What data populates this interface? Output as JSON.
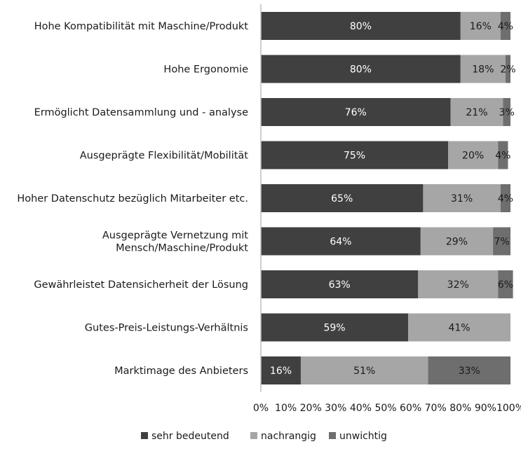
{
  "chart_data": {
    "type": "bar",
    "orientation": "horizontal",
    "stacked": true,
    "title": "",
    "xlabel": "",
    "ylabel": "",
    "xlim": [
      0,
      100
    ],
    "x_ticks": [
      "0%",
      "10%",
      "20%",
      "30%",
      "40%",
      "50%",
      "60%",
      "70%",
      "80%",
      "90%",
      "100%"
    ],
    "grid": false,
    "legend_position": "bottom",
    "categories": [
      [
        "Hohe Kompatibilität mit Maschine/Produkt"
      ],
      [
        "Hohe Ergonomie"
      ],
      [
        "Ermöglicht Datensammlung und - analyse"
      ],
      [
        "Ausgeprägte Flexibilität/Mobilität"
      ],
      [
        "Hoher Datenschutz bezüglich Mitarbeiter etc."
      ],
      [
        "Ausgeprägte Vernetzung mit",
        "Mensch/Maschine/Produkt"
      ],
      [
        "Gewährleistet Datensicherheit der Lösung"
      ],
      [
        "Gutes-Preis-Leistungs-Verhältnis"
      ],
      [
        "Marktimage des Anbieters"
      ]
    ],
    "series": [
      {
        "name": "sehr bedeutend",
        "color": "#404040",
        "label_color": "#ffffff",
        "values": [
          80,
          80,
          76,
          75,
          65,
          64,
          63,
          59,
          16
        ],
        "labels": [
          "80%",
          "80%",
          "76%",
          "75%",
          "65%",
          "64%",
          "63%",
          "59%",
          "16%"
        ]
      },
      {
        "name": "nachrangig",
        "color": "#a6a6a6",
        "label_color": "#1a1a1a",
        "values": [
          16,
          18,
          21,
          20,
          31,
          29,
          32,
          41,
          51
        ],
        "labels": [
          "16%",
          "18%",
          "21%",
          "20%",
          "31%",
          "29%",
          "32%",
          "41%",
          "51%"
        ]
      },
      {
        "name": "unwichtig",
        "color": "#6e6e6e",
        "label_color": "#1a1a1a",
        "values": [
          4,
          2,
          3,
          4,
          4,
          7,
          6,
          0,
          33
        ],
        "labels": [
          "4%",
          "2%",
          "3%",
          "4%",
          "4%",
          "7%",
          "6%",
          "",
          "33%"
        ]
      }
    ]
  }
}
